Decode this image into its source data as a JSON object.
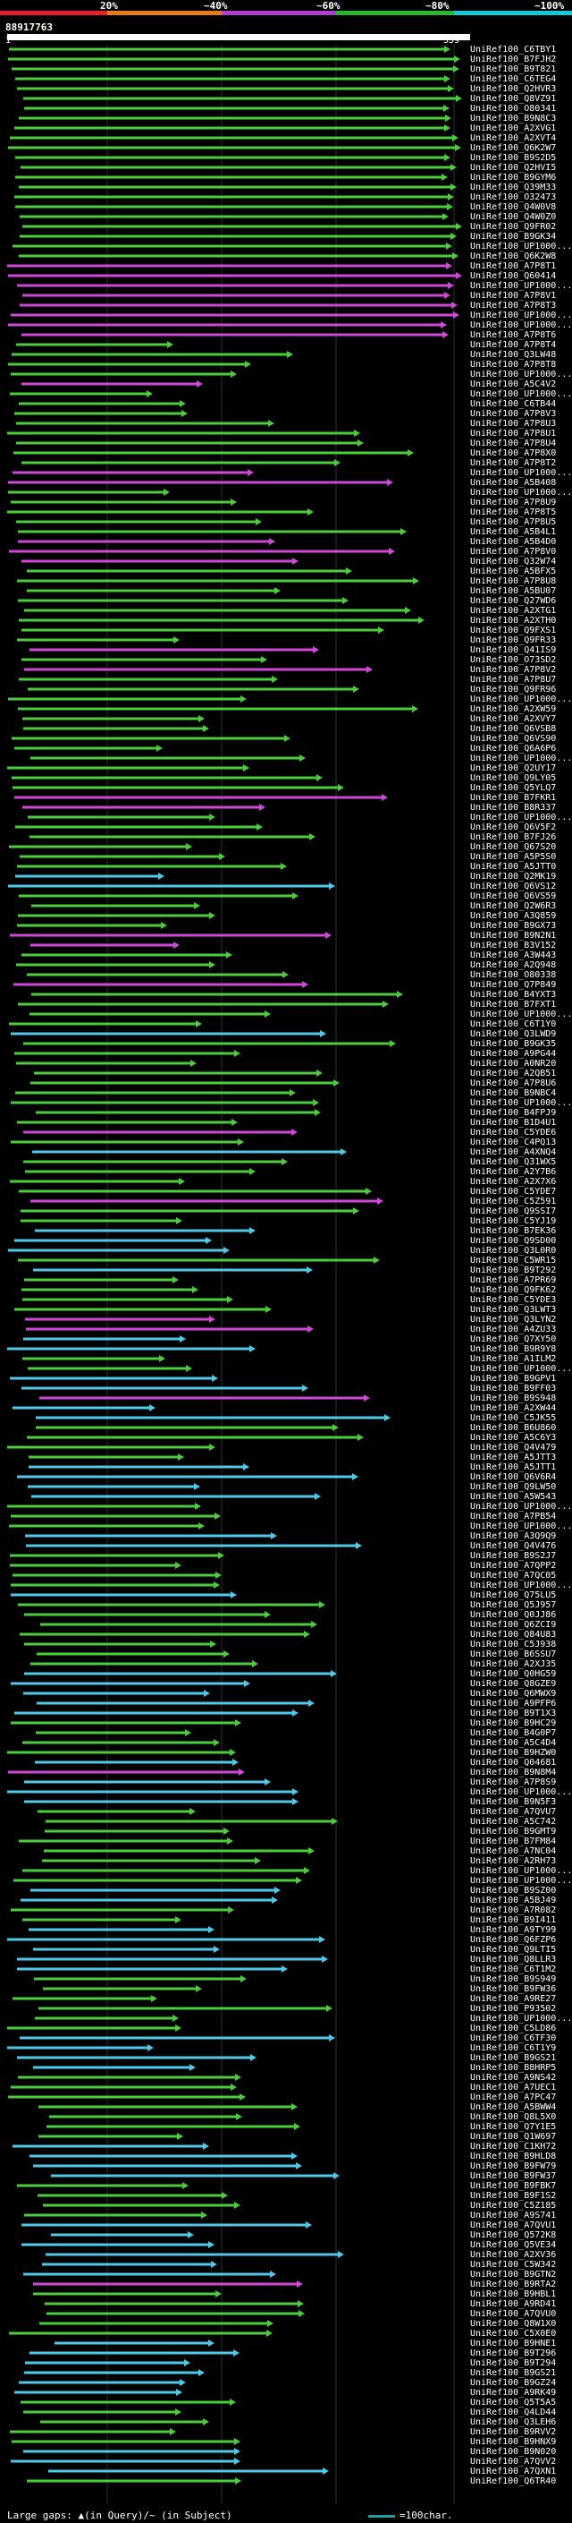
{
  "scale": {
    "labels": [
      "20%",
      "~40%",
      "~60%",
      "~80%",
      "~100%"
    ],
    "colors": [
      "#e8202a",
      "#e87a18",
      "#b03ed0",
      "#2ab82a",
      "#18c8d8"
    ]
  },
  "query": {
    "id": "88917763",
    "start": "1",
    "end": "559"
  },
  "colors": {
    "green": "#4ccb3c",
    "magenta": "#d048d8",
    "cyan": "#50c8e8",
    "background": "#000000",
    "grid": "#303030"
  },
  "hit_color_pattern": [
    "green",
    "green",
    "green",
    "green",
    "green",
    "green",
    "green",
    "green",
    "green",
    "green",
    "green",
    "green",
    "green",
    "green",
    "green",
    "green",
    "green",
    "green",
    "green",
    "green",
    "green",
    "green",
    "magenta",
    "magenta",
    "magenta",
    "magenta",
    "magenta",
    "magenta",
    "magenta",
    "magenta",
    "green",
    "green",
    "green",
    "green",
    "magenta",
    "green",
    "green",
    "green",
    "green",
    "green",
    "green",
    "green",
    "green",
    "magenta",
    "magenta",
    "green",
    "green",
    "green",
    "green",
    "green",
    "magenta",
    "magenta",
    "magenta",
    "green",
    "green",
    "green",
    "green",
    "green",
    "green",
    "green",
    "green",
    "magenta",
    "green",
    "magenta",
    "green",
    "green",
    "green",
    "green",
    "green",
    "green",
    "green",
    "green",
    "green",
    "green",
    "green",
    "green",
    "magenta",
    "magenta",
    "green",
    "green",
    "green",
    "green",
    "green",
    "green",
    "cyan",
    "cyan",
    "green",
    "green",
    "green",
    "green",
    "magenta",
    "magenta",
    "green",
    "green",
    "green",
    "magenta",
    "green",
    "green",
    "green",
    "green",
    "cyan",
    "green",
    "green",
    "green",
    "green",
    "green",
    "green",
    "green",
    "green",
    "green",
    "magenta",
    "green",
    "cyan",
    "green",
    "green",
    "green",
    "green",
    "magenta",
    "green",
    "green",
    "cyan",
    "cyan",
    "cyan",
    "green",
    "cyan",
    "green",
    "green",
    "green",
    "green",
    "magenta",
    "magenta",
    "cyan",
    "cyan",
    "green",
    "green",
    "cyan",
    "cyan",
    "magenta",
    "cyan",
    "cyan",
    "green",
    "green",
    "green",
    "green",
    "cyan",
    "cyan",
    "cyan",
    "cyan",
    "green",
    "green",
    "green",
    "cyan",
    "cyan",
    "green",
    "green",
    "green",
    "green",
    "cyan",
    "green",
    "green",
    "green",
    "green",
    "green",
    "green",
    "green",
    "cyan",
    "cyan",
    "cyan",
    "cyan",
    "cyan",
    "green",
    "green",
    "green",
    "green",
    "cyan",
    "magenta",
    "cyan",
    "cyan",
    "cyan",
    "green",
    "green",
    "green",
    "green",
    "green",
    "green",
    "green",
    "green",
    "cyan",
    "cyan",
    "green",
    "green",
    "cyan",
    "cyan",
    "cyan",
    "cyan",
    "cyan",
    "green",
    "green",
    "green",
    "green",
    "green",
    "green",
    "cyan",
    "cyan",
    "cyan",
    "cyan",
    "green",
    "green",
    "green",
    "green",
    "green",
    "green",
    "green",
    "cyan",
    "cyan",
    "cyan",
    "cyan",
    "green",
    "green",
    "green",
    "green",
    "cyan",
    "cyan",
    "cyan",
    "cyan",
    "cyan",
    "cyan",
    "magenta",
    "green",
    "green",
    "green",
    "green",
    "green",
    "cyan",
    "cyan",
    "cyan",
    "cyan",
    "cyan",
    "cyan",
    "green",
    "green",
    "green",
    "green",
    "green",
    "cyan",
    "cyan",
    "cyan",
    "green"
  ],
  "hits": [
    "UniRef100_C6TBY1",
    "UniRef100_B7FJH2",
    "UniRef100_B9T821",
    "UniRef100_C6TEG4",
    "UniRef100_Q2HVR3",
    "UniRef100_Q8VZ91",
    "UniRef100_O80341",
    "UniRef100_B9N8C3",
    "UniRef100_A2XVG1",
    "UniRef100_A2XVT4",
    "UniRef100_Q6K2W7",
    "UniRef100_B9S2D5",
    "UniRef100_Q2HVI5",
    "UniRef100_B9GYM6",
    "UniRef100_Q39M33",
    "UniRef100_O32473",
    "UniRef100_Q4W0V8",
    "UniRef100_Q4W0Z0",
    "UniRef100_Q9FR02",
    "UniRef100_B9GK34",
    "UniRef100_UP1000...",
    "UniRef100_Q6K2W8",
    "UniRef100_A7P8T1",
    "UniRef100_Q60414",
    "UniRef100_UP1000...",
    "UniRef100_A7P8V1",
    "UniRef100_A7P8T3",
    "UniRef100_UP1000...",
    "UniRef100_UP1000...",
    "UniRef100_A7P8T6",
    "UniRef100_A7P8T4",
    "UniRef100_Q3LW48",
    "UniRef100_A7P8T8",
    "UniRef100_UP1000...",
    "UniRef100_A5C4V2",
    "UniRef100_UP1000...",
    "UniRef100_C6TB44",
    "UniRef100_A7P8V3",
    "UniRef100_A7P8U3",
    "UniRef100_A7P8U1",
    "UniRef100_A7P8U4",
    "UniRef100_A7P8X0",
    "UniRef100_A7P8T2",
    "UniRef100_UP1000...",
    "UniRef100_A5B408",
    "UniRef100_UP1000...",
    "UniRef100_A7P8U9",
    "UniRef100_A7P8T5",
    "UniRef100_A7P8U5",
    "UniRef100_A5B4L1",
    "UniRef100_A5B4D0",
    "UniRef100_A7P8V0",
    "UniRef100_Q32W74",
    "UniRef100_A5BFX5",
    "UniRef100_A7P8U8",
    "UniRef100_A5BU07",
    "UniRef100_Q27WD6",
    "UniRef100_A2XTG1",
    "UniRef100_A2XTH0",
    "UniRef100_Q9FXS1",
    "UniRef100_Q9FR33",
    "UniRef100_Q41IS9",
    "UniRef100_O73SD2",
    "UniRef100_A7P8V2",
    "UniRef100_A7P8U7",
    "UniRef100_Q9FR96",
    "UniRef100_UP1000...",
    "UniRef100_A2XW59",
    "UniRef100_A2XVY7",
    "UniRef100_Q6VSB8",
    "UniRef100_Q6VS90",
    "UniRef100_Q6A6P6",
    "UniRef100_UP1000...",
    "UniRef100_Q2UY17",
    "UniRef100_Q9LY05",
    "UniRef100_Q5YLQ7",
    "UniRef100_B7FKR1",
    "UniRef100_B8R337",
    "UniRef100_UP1000...",
    "UniRef100_Q6V5F2",
    "UniRef100_B7FJ26",
    "UniRef100_Q67S20",
    "UniRef100_A5P5S0",
    "UniRef100_A5JTT0",
    "UniRef100_Q2MK19",
    "UniRef100_Q6VS12",
    "UniRef100_Q6VS59",
    "UniRef100_Q2W6R3",
    "UniRef100_A3Q859",
    "UniRef100_B9GX73",
    "UniRef100_B9N2N1",
    "UniRef100_B3V152",
    "UniRef100_A3W443",
    "UniRef100_A2Q948",
    "UniRef100_O80338",
    "UniRef100_Q7P849",
    "UniRef100_B4YXT3",
    "UniRef100_B7FXT1",
    "UniRef100_UP1000...",
    "UniRef100_C6T1Y0",
    "UniRef100_Q3LWD9",
    "UniRef100_B9GK35",
    "UniRef100_A9PG44",
    "UniRef100_A0NR20",
    "UniRef100_A2QB51",
    "UniRef100_A7P8U6",
    "UniRef100_B9NBC4",
    "UniRef100_UP1000...",
    "UniRef100_B4FPJ9",
    "UniRef100_B1D4U1",
    "UniRef100_C5YDE6",
    "UniRef100_C4PQ13",
    "UniRef100_A4XNQ4",
    "UniRef100_Q31WX5",
    "UniRef100_A2Y7B6",
    "UniRef100_A2X7X6",
    "UniRef100_C5YDE7",
    "UniRef100_C5Z591",
    "UniRef100_Q9SSI7",
    "UniRef100_C5YJ19",
    "UniRef100_B7EK36",
    "UniRef100_Q9SD00",
    "UniRef100_Q3L0R0",
    "UniRef100_C5WR15",
    "UniRef100_B9T292",
    "UniRef100_A7PR69",
    "UniRef100_Q9FK62",
    "UniRef100_C5YDE3",
    "UniRef100_Q3LWT3",
    "UniRef100_Q3LYN2",
    "UniRef100_A4ZU33",
    "UniRef100_Q7XY50",
    "UniRef100_B9R9Y8",
    "UniRef100_A1ILM2",
    "UniRef100_UP1000...",
    "UniRef100_B9GPV1",
    "UniRef100_B9FF03",
    "UniRef100_B9S948",
    "UniRef100_A2XW44",
    "UniRef100_C5JK55",
    "UniRef100_B6U860",
    "UniRef100_A5C6Y3",
    "UniRef100_Q4V479",
    "UniRef100_A5JTT3",
    "UniRef100_A5JTT1",
    "UniRef100_Q6V6R4",
    "UniRef100_Q9LW50",
    "UniRef100_A5W543",
    "UniRef100_UP1000...",
    "UniRef100_A7PB54",
    "UniRef100_UP1000...",
    "UniRef100_A3Q9Q9",
    "UniRef100_Q4V476",
    "UniRef100_B9S2J7",
    "UniRef100_A7QPP2",
    "UniRef100_A7QC05",
    "UniRef100_UP1000...",
    "UniRef100_Q75LU5",
    "UniRef100_Q5J957",
    "UniRef100_Q0JJ86",
    "UniRef100_Q6ZCI9",
    "UniRef100_Q84U83",
    "UniRef100_C5J938",
    "UniRef100_B6SSU7",
    "UniRef100_A2XJ35",
    "UniRef100_Q0HG59",
    "UniRef100_Q8GZE9",
    "UniRef100_Q6MWX9",
    "UniRef100_A9PFP6",
    "UniRef100_B9T1X3",
    "UniRef100_B9HC29",
    "UniRef100_B4G0P7",
    "UniRef100_A5C4D4",
    "UniRef100_B9HZW0",
    "UniRef100_Q04681",
    "UniRef100_B9N8M4",
    "UniRef100_A7P8S9",
    "UniRef100_UP1000...",
    "UniRef100_B9N5F3",
    "UniRef100_A7QVU7",
    "UniRef100_A5C742",
    "UniRef100_B9GMT9",
    "UniRef100_B7FM84",
    "UniRef100_A7NC04",
    "UniRef100_A2RH73",
    "UniRef100_UP1000...",
    "UniRef100_UP1000...",
    "UniRef100_B9SZ00",
    "UniRef100_A5BJ49",
    "UniRef100_A7R082",
    "UniRef100_B9I411",
    "UniRef100_A9TY99",
    "UniRef100_Q6FZP6",
    "UniRef100_Q9LTI5",
    "UniRef100_Q8LLR3",
    "UniRef100_C6T1M2",
    "UniRef100_B9S949",
    "UniRef100_B9FW36",
    "UniRef100_A9RE27",
    "UniRef100_P93502",
    "UniRef100_UP1000...",
    "UniRef100_C5LD86",
    "UniRef100_C6TF30",
    "UniRef100_C6T1Y9",
    "UniRef100_B9GS21",
    "UniRef100_B8HRP5",
    "UniRef100_A9NS42",
    "UniRef100_A7UEC1",
    "UniRef100_A7PC47",
    "UniRef100_A5BWW4",
    "UniRef100_Q8L5X0",
    "UniRef100_Q7Y1E5",
    "UniRef100_Q1W697",
    "UniRef100_C1KH72",
    "UniRef100_B9HLD8",
    "UniRef100_B9FW79",
    "UniRef100_B9FW37",
    "UniRef100_B9FBK7",
    "UniRef100_B9F1S2",
    "UniRef100_C5Z185",
    "UniRef100_A9S741",
    "UniRef100_A7QVU1",
    "UniRef100_Q572K8",
    "UniRef100_Q5VE34",
    "UniRef100_A2XV36",
    "UniRef100_C5W342",
    "UniRef100_B9GTN2",
    "UniRef100_B9RTA2",
    "UniRef100_B9HBL1",
    "UniRef100_A9RD41",
    "UniRef100_A7QVU0",
    "UniRef100_Q8W1X0",
    "UniRef100_C5X0E0",
    "UniRef100_B9HNE1",
    "UniRef100_B9T296",
    "UniRef100_B9T294",
    "UniRef100_B9GS21",
    "UniRef100_B9GZ24",
    "UniRef100_A9RK49",
    "UniRef100_Q5T5A5",
    "UniRef100_Q4LD44",
    "UniRef100_Q3LEH6",
    "UniRef100_B9RVV2",
    "UniRef100_B9HNX9",
    "UniRef100_B9N020",
    "UniRef100_A7QVV2",
    "UniRef100_A7QXN1",
    "UniRef100_Q6TR40"
  ],
  "footer": {
    "text": "Large gaps: ▲(in Query)/~ (in Subject)",
    "legend": "=100char."
  }
}
